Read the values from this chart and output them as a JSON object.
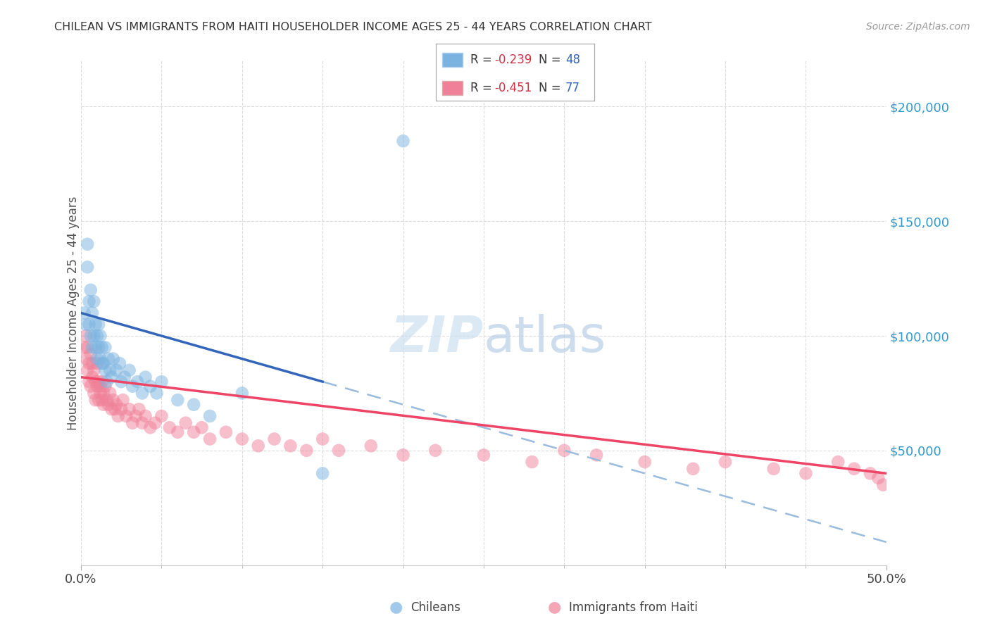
{
  "title": "CHILEAN VS IMMIGRANTS FROM HAITI HOUSEHOLDER INCOME AGES 25 - 44 YEARS CORRELATION CHART",
  "source": "Source: ZipAtlas.com",
  "ylabel": "Householder Income Ages 25 - 44 years",
  "xlim": [
    0.0,
    0.5
  ],
  "ylim": [
    0,
    220000
  ],
  "yticks": [
    0,
    50000,
    100000,
    150000,
    200000
  ],
  "ytick_labels": [
    "",
    "$50,000",
    "$100,000",
    "$150,000",
    "$200,000"
  ],
  "xtick_labels": [
    "0.0%",
    "50.0%"
  ],
  "grid_color": "#cccccc",
  "background_color": "#ffffff",
  "chilean_color": "#7ab3e0",
  "chilean_edge_color": "#5a8fc0",
  "haiti_color": "#f08098",
  "haiti_edge_color": "#d06070",
  "chilean_line_color": "#3366bb",
  "chilean_dash_color": "#99bbdd",
  "haiti_line_color": "#ee4466",
  "chilean_R": -0.239,
  "chilean_N": 48,
  "haiti_R": -0.451,
  "haiti_N": 77,
  "legend_r_color": "#cc3344",
  "legend_n_color": "#3366bb",
  "watermark_color": "#cce0f0",
  "chilean_x": [
    0.002,
    0.003,
    0.004,
    0.004,
    0.005,
    0.005,
    0.006,
    0.006,
    0.007,
    0.007,
    0.008,
    0.008,
    0.009,
    0.009,
    0.01,
    0.01,
    0.011,
    0.011,
    0.012,
    0.012,
    0.013,
    0.013,
    0.014,
    0.015,
    0.015,
    0.016,
    0.017,
    0.018,
    0.019,
    0.02,
    0.022,
    0.024,
    0.025,
    0.027,
    0.03,
    0.032,
    0.035,
    0.038,
    0.04,
    0.043,
    0.047,
    0.05,
    0.06,
    0.07,
    0.08,
    0.1,
    0.15,
    0.2
  ],
  "chilean_y": [
    110000,
    105000,
    140000,
    130000,
    105000,
    115000,
    100000,
    120000,
    95000,
    110000,
    100000,
    115000,
    95000,
    105000,
    100000,
    90000,
    105000,
    95000,
    90000,
    100000,
    88000,
    95000,
    88000,
    85000,
    95000,
    80000,
    90000,
    85000,
    82000,
    90000,
    85000,
    88000,
    80000,
    82000,
    85000,
    78000,
    80000,
    75000,
    82000,
    78000,
    75000,
    80000,
    72000,
    70000,
    65000,
    75000,
    40000,
    185000
  ],
  "haiti_x": [
    0.002,
    0.003,
    0.003,
    0.004,
    0.004,
    0.005,
    0.005,
    0.006,
    0.006,
    0.007,
    0.007,
    0.008,
    0.008,
    0.009,
    0.009,
    0.01,
    0.01,
    0.011,
    0.011,
    0.012,
    0.012,
    0.013,
    0.013,
    0.014,
    0.014,
    0.015,
    0.016,
    0.017,
    0.018,
    0.019,
    0.02,
    0.021,
    0.022,
    0.023,
    0.025,
    0.026,
    0.028,
    0.03,
    0.032,
    0.034,
    0.036,
    0.038,
    0.04,
    0.043,
    0.046,
    0.05,
    0.055,
    0.06,
    0.065,
    0.07,
    0.075,
    0.08,
    0.09,
    0.1,
    0.11,
    0.12,
    0.13,
    0.14,
    0.15,
    0.16,
    0.18,
    0.2,
    0.22,
    0.25,
    0.28,
    0.3,
    0.32,
    0.35,
    0.38,
    0.4,
    0.43,
    0.45,
    0.47,
    0.48,
    0.49,
    0.495,
    0.498
  ],
  "haiti_y": [
    95000,
    90000,
    100000,
    85000,
    95000,
    88000,
    80000,
    92000,
    78000,
    88000,
    82000,
    75000,
    85000,
    80000,
    72000,
    88000,
    78000,
    72000,
    80000,
    75000,
    78000,
    72000,
    80000,
    70000,
    75000,
    78000,
    72000,
    70000,
    75000,
    68000,
    72000,
    68000,
    70000,
    65000,
    68000,
    72000,
    65000,
    68000,
    62000,
    65000,
    68000,
    62000,
    65000,
    60000,
    62000,
    65000,
    60000,
    58000,
    62000,
    58000,
    60000,
    55000,
    58000,
    55000,
    52000,
    55000,
    52000,
    50000,
    55000,
    50000,
    52000,
    48000,
    50000,
    48000,
    45000,
    50000,
    48000,
    45000,
    42000,
    45000,
    42000,
    40000,
    45000,
    42000,
    40000,
    38000,
    35000
  ]
}
